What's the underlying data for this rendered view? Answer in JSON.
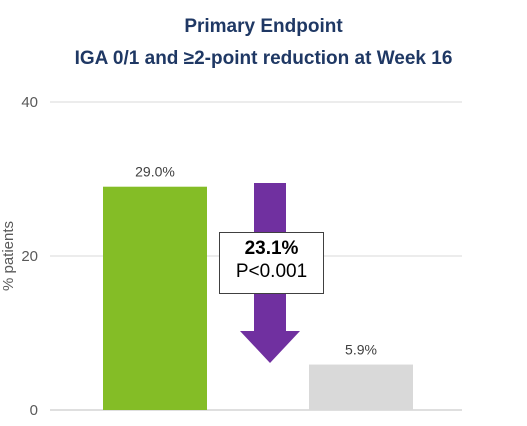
{
  "chart_data": {
    "type": "bar",
    "title_line1": "Primary Endpoint",
    "title_line2": "IGA 0/1 and ≥2-point reduction at Week 16",
    "ylabel": "% patients",
    "xlabel": "",
    "ylim": [
      0,
      40
    ],
    "yticks": [
      0,
      20,
      40
    ],
    "grid": true,
    "bars": [
      {
        "value": 29.0,
        "label": "29.0%",
        "color": "#84bd26"
      },
      {
        "value": 5.9,
        "label": "5.9%",
        "color": "#d9d9d9"
      }
    ],
    "annotation": {
      "difference": "23.1%",
      "p_value": "P<0.001",
      "arrow_color": "#7030a0"
    }
  }
}
